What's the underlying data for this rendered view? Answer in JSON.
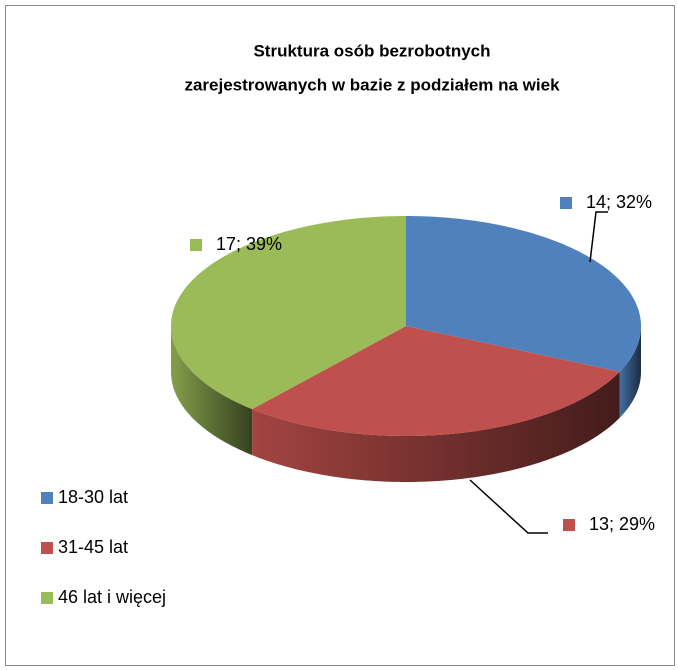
{
  "chart_data": {
    "type": "pie",
    "title": [
      "Struktura osób bezrobotnych",
      "zarejestrowanych  w bazie z podziałem na wiek"
    ],
    "categories": [
      "18-30 lat",
      "31-45 lat",
      "46 lat i więcej"
    ],
    "values": [
      14,
      13,
      17
    ],
    "value_labels": [
      "14; 32%",
      "13; 29%",
      "17; 39%"
    ],
    "colors": [
      "#4f81bd",
      "#c0504d",
      "#9bbb59"
    ],
    "legend": "left"
  }
}
